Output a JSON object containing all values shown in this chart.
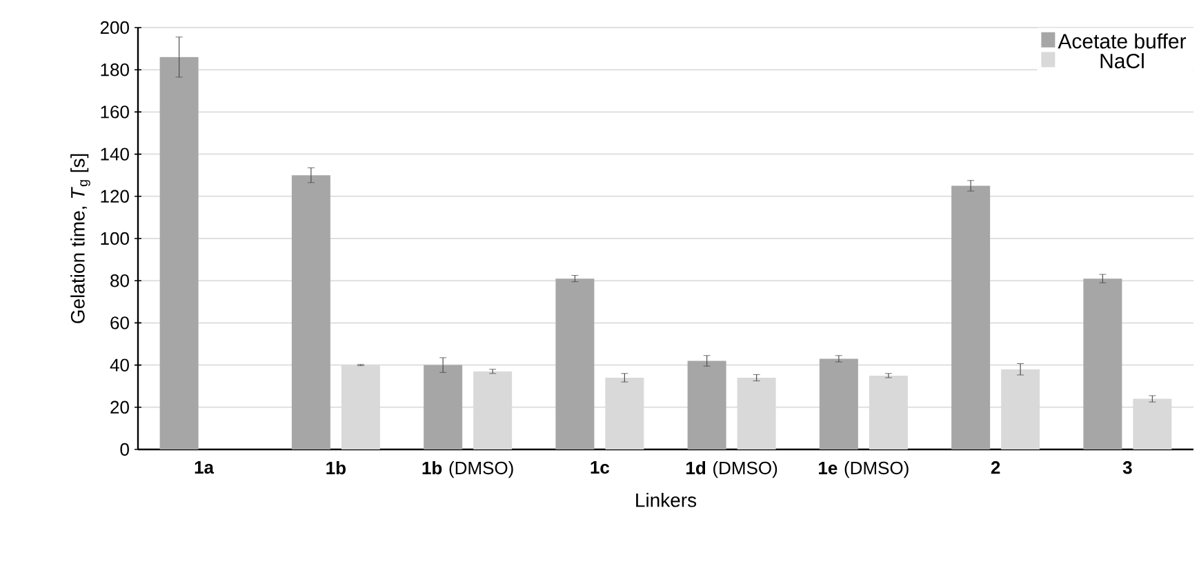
{
  "chart_data": {
    "type": "bar",
    "xlabel": "Linkers",
    "ylabel": "Gelation time, *T*$_{g}$ [s]",
    "categories": [
      "**1a**",
      "**1b**",
      "**1b** (DMSO)",
      "**1c**",
      "**1d** (DMSO)",
      "**1e** (DMSO)",
      "**2**",
      "**3**"
    ],
    "series": [
      {
        "name": "Acetate buffer",
        "color": "#a6a6a6",
        "values": [
          186,
          130,
          40,
          81,
          42,
          43,
          125,
          81
        ],
        "errors": [
          9.5,
          3.5,
          3.5,
          1.5,
          2.5,
          1.5,
          2.5,
          2
        ]
      },
      {
        "name": "NaCl",
        "color": "#d9d9d9",
        "values": [
          null,
          40,
          37,
          34,
          34,
          35,
          38,
          24
        ],
        "errors": [
          null,
          0.3,
          1,
          2,
          1.5,
          1,
          2.7,
          1.5
        ]
      }
    ],
    "ylim": [
      0,
      200
    ],
    "yticks": [
      0,
      20,
      40,
      60,
      80,
      100,
      120,
      140,
      160,
      180,
      200
    ],
    "grid": "y",
    "legend": "top right"
  }
}
